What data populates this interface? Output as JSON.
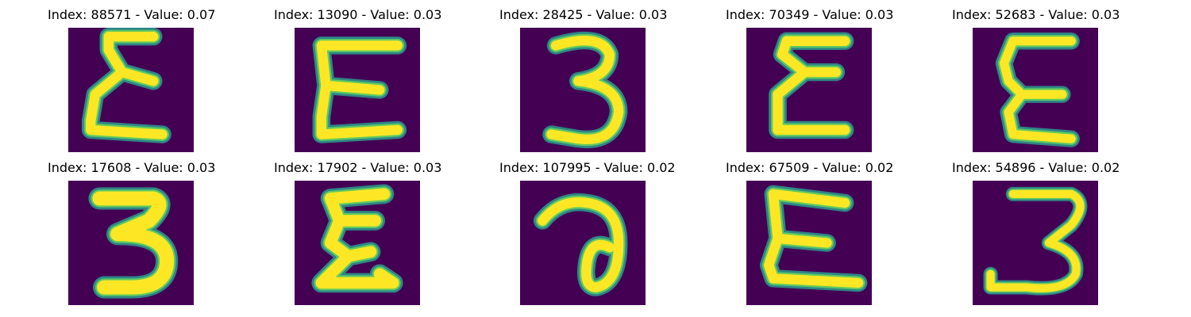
{
  "panels": [
    {
      "index": "88571",
      "value": "0.07",
      "title": "Index: 88571 - Value: 0.07",
      "glyph": "E-like-zigzag-glyph"
    },
    {
      "index": "13090",
      "value": "0.03",
      "title": "Index: 13090 - Value: 0.03",
      "glyph": "E-like-glyph"
    },
    {
      "index": "28425",
      "value": "0.03",
      "title": "Index: 28425 - Value: 0.03",
      "glyph": "three-glyph"
    },
    {
      "index": "70349",
      "value": "0.03",
      "title": "Index: 70349 - Value: 0.03",
      "glyph": "E-like-zigzag-glyph"
    },
    {
      "index": "52683",
      "value": "0.03",
      "title": "Index: 52683 - Value: 0.03",
      "glyph": "E-like-glyph"
    },
    {
      "index": "17608",
      "value": "0.03",
      "title": "Index: 17608 - Value: 0.03",
      "glyph": "bold-three-glyph"
    },
    {
      "index": "17902",
      "value": "0.03",
      "title": "Index: 17902 - Value: 0.03",
      "glyph": "E-like-zigzag-glyph"
    },
    {
      "index": "107995",
      "value": "0.02",
      "title": "Index: 107995 - Value: 0.02",
      "glyph": "loop-glyph"
    },
    {
      "index": "67509",
      "value": "0.02",
      "title": "Index: 67509 - Value: 0.02",
      "glyph": "E-like-glyph"
    },
    {
      "index": "54896",
      "value": "0.02",
      "title": "Index: 54896 - Value: 0.02",
      "glyph": "three-glyph"
    }
  ],
  "colors": {
    "background": "#440154",
    "stroke_core": "#fde725",
    "stroke_mid": "#5ec962",
    "stroke_halo": "#2a9d8f"
  }
}
